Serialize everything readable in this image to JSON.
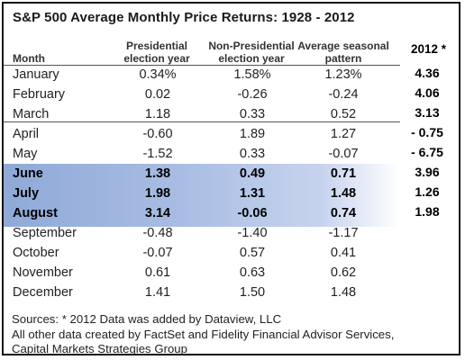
{
  "chart_data": {
    "type": "table",
    "title": "S&P 500 Average Monthly Price Returns: 1928 - 2012",
    "columns": [
      "Month",
      "Presidential election year",
      "Non-Presidential election year",
      "Average seasonal pattern",
      "2012 *"
    ],
    "rows": [
      {
        "month": "January",
        "presidential": "0.34%",
        "non_presidential": "1.58%",
        "average": "1.23%",
        "y2012": "4.36"
      },
      {
        "month": "February",
        "presidential": "0.02",
        "non_presidential": "-0.26",
        "average": "-0.24",
        "y2012": "4.06"
      },
      {
        "month": "March",
        "presidential": "1.18",
        "non_presidential": "0.33",
        "average": "0.52",
        "y2012": "3.13"
      },
      {
        "month": "April",
        "presidential": "-0.60",
        "non_presidential": "1.89",
        "average": "1.27",
        "y2012": "- 0.75"
      },
      {
        "month": "May",
        "presidential": "-1.52",
        "non_presidential": "0.33",
        "average": "-0.07",
        "y2012": "- 6.75"
      },
      {
        "month": "June",
        "presidential": "1.38",
        "non_presidential": "0.49",
        "average": "0.71",
        "y2012": "3.96"
      },
      {
        "month": "July",
        "presidential": "1.98",
        "non_presidential": "1.31",
        "average": "1.48",
        "y2012": "1.26"
      },
      {
        "month": "August",
        "presidential": "3.14",
        "non_presidential": "-0.06",
        "average": "0.74",
        "y2012": "1.98"
      },
      {
        "month": "September",
        "presidential": "-0.48",
        "non_presidential": "-1.40",
        "average": "-1.17",
        "y2012": ""
      },
      {
        "month": "October",
        "presidential": "-0.07",
        "non_presidential": "0.57",
        "average": "0.41",
        "y2012": ""
      },
      {
        "month": "November",
        "presidential": "0.61",
        "non_presidential": "0.63",
        "average": "0.62",
        "y2012": ""
      },
      {
        "month": "December",
        "presidential": "1.41",
        "non_presidential": "1.50",
        "average": "1.48",
        "y2012": ""
      }
    ],
    "highlighted_rows": [
      "June",
      "July",
      "August"
    ],
    "highlight_color": "#8fa9d8"
  },
  "header": {
    "month": "Month",
    "presidential": [
      "Presidential",
      "election year"
    ],
    "non_presidential": [
      "Non-Presidential",
      "election year"
    ],
    "average": [
      "Average seasonal",
      "pattern"
    ],
    "y2012": "2012 *"
  },
  "footer": {
    "line1": "Sources: * 2012 Data was added by Dataview, LLC",
    "line2": "All other data created by FactSet and Fidelity Financial Advisor Services,",
    "line3": "Capital Markets Strategies Group"
  }
}
